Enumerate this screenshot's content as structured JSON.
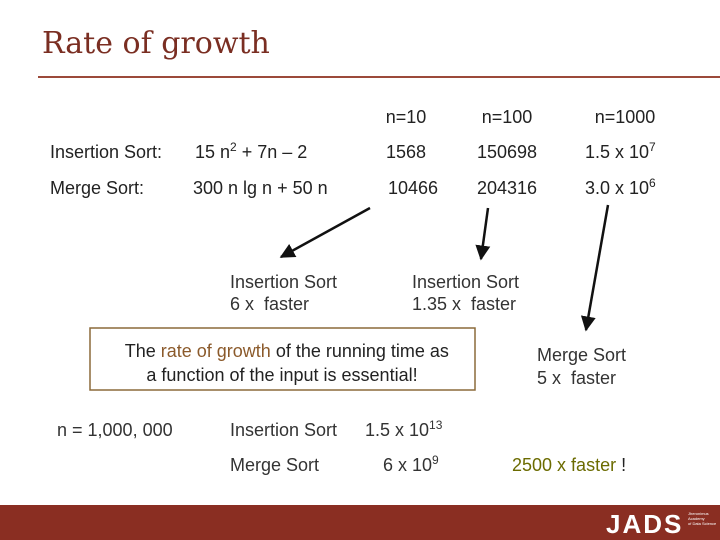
{
  "title": "Rate of growth",
  "header": {
    "n_values": [
      "n=10",
      "n=100",
      "n=1000"
    ]
  },
  "rows": [
    {
      "name": "Insertion Sort:",
      "formula": [
        "15 n",
        "2",
        " + 7n – 2"
      ],
      "counts": [
        "1568",
        "150698",
        [
          "1.5 x 10",
          "7"
        ]
      ]
    },
    {
      "name": "Merge Sort:",
      "formula": "300 n lg n + 50 n",
      "counts": [
        "10466",
        "204316",
        [
          "3.0 x 10",
          "6"
        ]
      ]
    }
  ],
  "callouts": [
    {
      "lines": [
        "Insertion Sort",
        "6 x  faster"
      ]
    },
    {
      "lines": [
        "Insertion Sort",
        "1.35 x  faster"
      ]
    },
    {
      "lines": [
        "Merge Sort",
        "5 x  faster"
      ]
    }
  ],
  "note": {
    "line1": [
      "The ",
      "rate of growth",
      " of the running time as"
    ],
    "line2": "a function of the input is essential!"
  },
  "large_n": {
    "label": "n = 1,000, 000",
    "rows": [
      {
        "name": "Insertion Sort",
        "time": [
          "1.5 x 10",
          "13"
        ]
      },
      {
        "name": "Merge Sort",
        "time": [
          "6 x 10",
          "9"
        ]
      }
    ],
    "result": [
      "2500 x faster",
      " !"
    ]
  },
  "footer": {
    "logo": "JADS",
    "tagline": [
      "Jheronimus",
      "Academy",
      "of Data Science"
    ]
  }
}
